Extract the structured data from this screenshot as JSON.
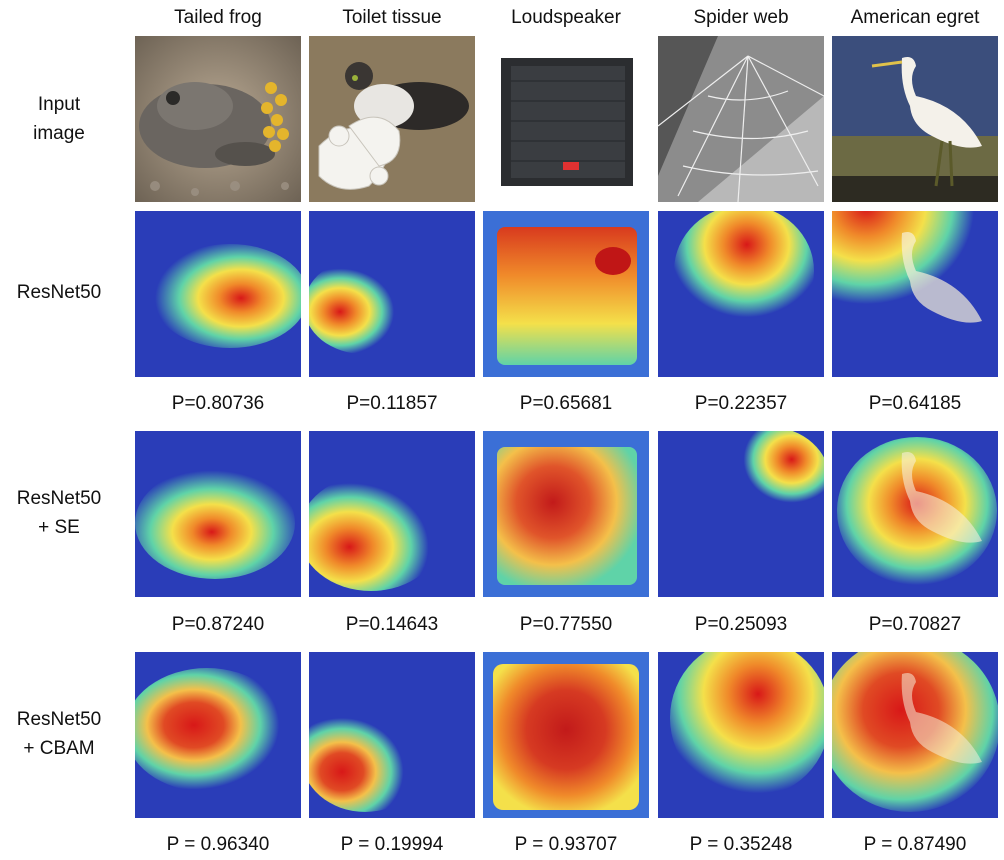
{
  "columns": [
    {
      "name": "Tailed frog"
    },
    {
      "name": "Toilet tissue"
    },
    {
      "name": "Loudspeaker"
    },
    {
      "name": "Spider web"
    },
    {
      "name": "American egret"
    }
  ],
  "rows": [
    {
      "label": "Input\nimage",
      "probs": []
    },
    {
      "label": "ResNet50",
      "probs": [
        "P=0.80736",
        "P=0.11857",
        "P=0.65681",
        "P=0.22357",
        "P=0.64185"
      ]
    },
    {
      "label": "ResNet50\n+ SE",
      "probs": [
        "P=0.87240",
        "P=0.14643",
        "P=0.77550",
        "P=0.25093",
        "P=0.70827"
      ]
    },
    {
      "label": "ResNet50\n+ CBAM",
      "probs": [
        "P = 0.96340",
        "P = 0.19994",
        "P = 0.93707",
        "P = 0.35248",
        "P = 0.87490"
      ]
    }
  ],
  "colors": {
    "heat_low": "#2a3db8",
    "heat_mid": "#f4e04a",
    "heat_high": "#d81818"
  }
}
